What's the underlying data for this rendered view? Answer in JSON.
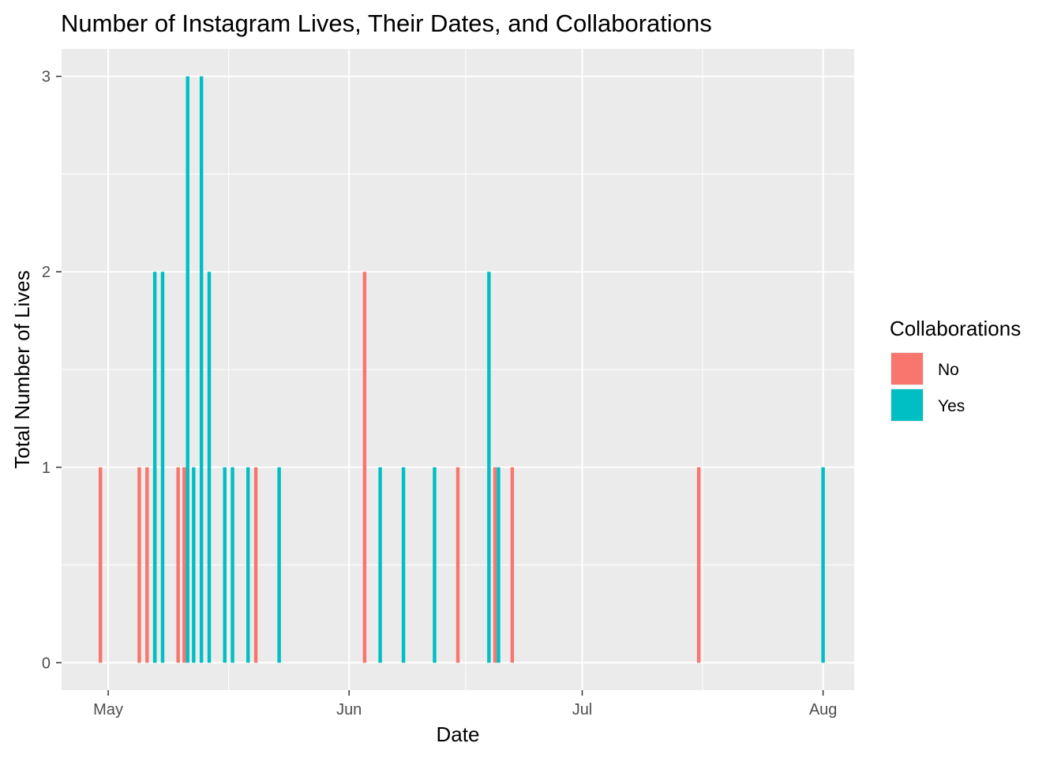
{
  "chart_data": {
    "type": "bar",
    "title": "Number of Instagram Lives, Their Dates, and Collaborations",
    "xlabel": "Date",
    "ylabel": "Total Number of Lives",
    "x_ticks": [
      {
        "label": "May",
        "date": "2020-05-01"
      },
      {
        "label": "Jun",
        "date": "2020-06-01"
      },
      {
        "label": "Jul",
        "date": "2020-07-01"
      },
      {
        "label": "Aug",
        "date": "2020-08-01"
      }
    ],
    "y_ticks": [
      0,
      1,
      2,
      3
    ],
    "xlim": [
      "2020-04-25",
      "2020-08-05"
    ],
    "ylim": [
      -0.14,
      3.14
    ],
    "grid": true,
    "legend": {
      "title": "Collaborations",
      "position": "right",
      "entries": [
        {
          "label": "No",
          "color": "#F8766D"
        },
        {
          "label": "Yes",
          "color": "#00BFC4"
        }
      ]
    },
    "series": [
      {
        "name": "No",
        "color": "#F8766D",
        "points": [
          {
            "date": "2020-04-30",
            "count": 1
          },
          {
            "date": "2020-05-05",
            "count": 1
          },
          {
            "date": "2020-05-06",
            "count": 1
          },
          {
            "date": "2020-05-10",
            "count": 1
          },
          {
            "date": "2020-05-11",
            "count": 1
          },
          {
            "date": "2020-05-20",
            "count": 1
          },
          {
            "date": "2020-06-03",
            "count": 2
          },
          {
            "date": "2020-06-15",
            "count": 1
          },
          {
            "date": "2020-06-20",
            "count": 1
          },
          {
            "date": "2020-06-22",
            "count": 1
          },
          {
            "date": "2020-07-16",
            "count": 1
          }
        ]
      },
      {
        "name": "Yes",
        "color": "#00BFC4",
        "points": [
          {
            "date": "2020-05-07",
            "count": 2
          },
          {
            "date": "2020-05-07",
            "count": 1
          },
          {
            "date": "2020-05-08",
            "count": 2
          },
          {
            "date": "2020-05-11",
            "count": 3
          },
          {
            "date": "2020-05-12",
            "count": 1
          },
          {
            "date": "2020-05-13",
            "count": 3
          },
          {
            "date": "2020-05-14",
            "count": 2
          },
          {
            "date": "2020-05-16",
            "count": 1
          },
          {
            "date": "2020-05-17",
            "count": 1
          },
          {
            "date": "2020-05-19",
            "count": 1
          },
          {
            "date": "2020-05-23",
            "count": 1
          },
          {
            "date": "2020-06-05",
            "count": 1
          },
          {
            "date": "2020-06-08",
            "count": 1
          },
          {
            "date": "2020-06-12",
            "count": 1
          },
          {
            "date": "2020-06-19",
            "count": 2
          },
          {
            "date": "2020-06-20",
            "count": 1
          },
          {
            "date": "2020-08-01",
            "count": 1
          }
        ]
      }
    ]
  }
}
